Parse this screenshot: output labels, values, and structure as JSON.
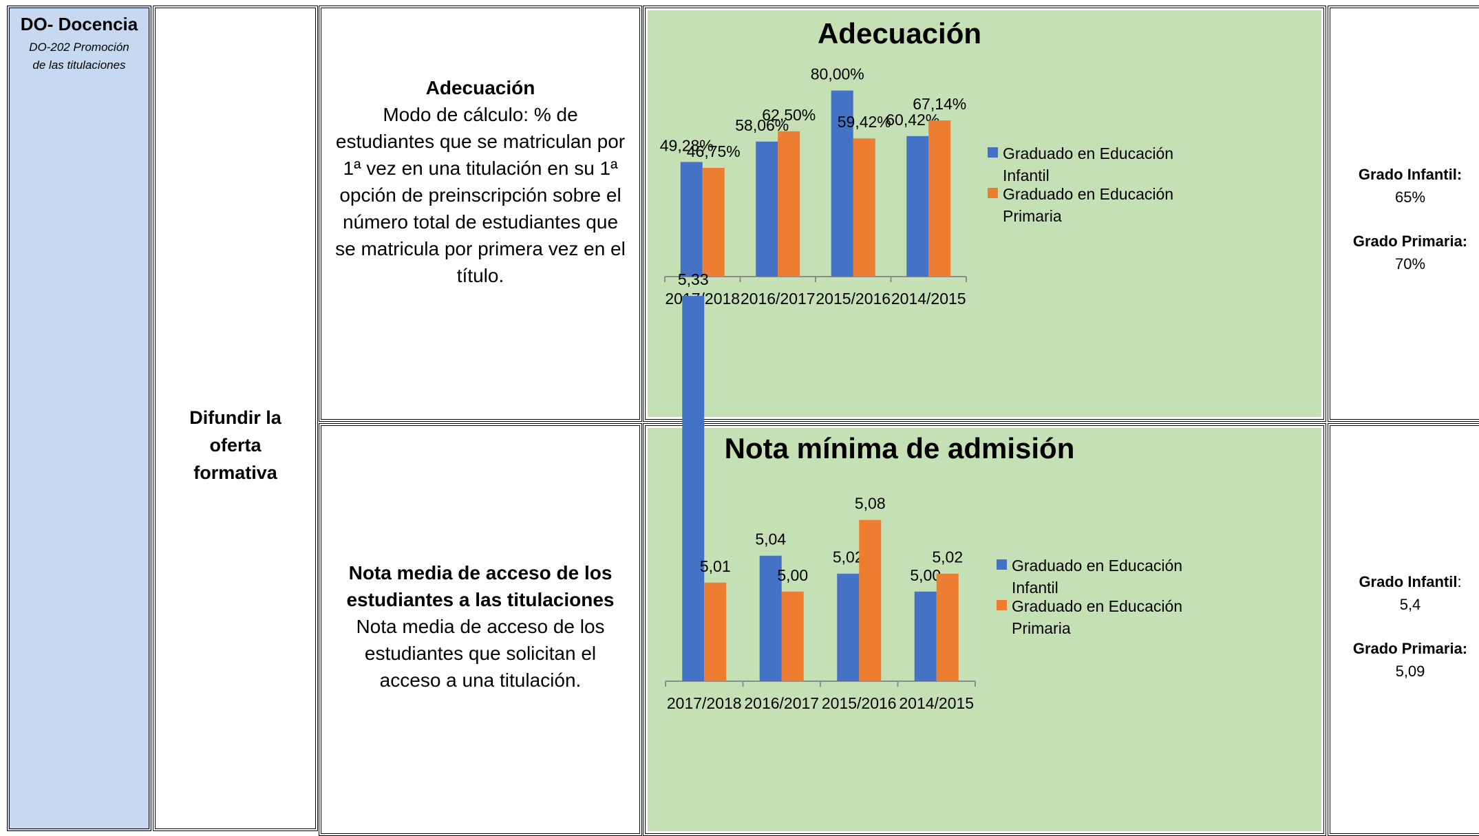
{
  "area": {
    "code": "DO- Docencia",
    "sub_line1": "DO-202 Promoción",
    "sub_line2": "de las titulaciones"
  },
  "objective": {
    "line1": "Difundir la",
    "line2": "oferta",
    "line3": "formativa"
  },
  "indicator1": {
    "title": "Adecuación",
    "text": "Modo de cálculo: % de estudiantes que se matriculan por 1ª vez en una titulación en su 1ª opción de preinscripción sobre el número total de estudiantes que se matricula por primera vez en el título."
  },
  "indicator2": {
    "title": "Nota media de acceso de los estudiantes a las titulaciones",
    "text": "Nota media de acceso de los estudiantes que solicitan el acceso a una titulación."
  },
  "targets1": {
    "label1": "Grado Infantil:",
    "value1": "65%",
    "label2": "Grado Primaria:",
    "value2": "70%"
  },
  "targets2": {
    "label1": "Grado Infantil",
    "colon1": ":",
    "value1": "5,4",
    "label2": "Grado Primaria:",
    "value2": "5,09"
  },
  "colors": {
    "infantil": "#4472c4",
    "primaria": "#ed7d31",
    "chart_bg": "#c4e0b4",
    "area_bg": "#c6d9f0"
  },
  "chart_data": [
    {
      "type": "bar",
      "title": "Adecuación",
      "categories": [
        "2017/2018",
        "2016/2017",
        "2015/2016",
        "2014/2015"
      ],
      "series": [
        {
          "name": "Graduado en Educación Infantil",
          "values": [
            49.28,
            58.06,
            80.0,
            60.42
          ],
          "labels": [
            "49,28%",
            "58,06%",
            "80,00%",
            "60,42%"
          ]
        },
        {
          "name": "Graduado en Educación Primaria",
          "values": [
            46.75,
            62.5,
            59.42,
            67.14
          ],
          "labels": [
            "46,75%",
            "62,50%",
            "59,42%",
            "67,14%"
          ]
        }
      ],
      "ylim": [
        0,
        100
      ],
      "grid": false,
      "legend": "right"
    },
    {
      "type": "bar",
      "title": "Nota mínima de admisión",
      "categories": [
        "2017/2018",
        "2016/2017",
        "2015/2016",
        "2014/2015"
      ],
      "series": [
        {
          "name": "Graduado en Educación Infantil",
          "values": [
            5.33,
            5.04,
            5.02,
            5.0
          ],
          "labels": [
            "5,33",
            "5,04",
            "5,02",
            "5,00"
          ]
        },
        {
          "name": "Graduado en Educación Primaria",
          "values": [
            5.01,
            5.0,
            5.08,
            5.02
          ],
          "labels": [
            "5,01",
            "5,00",
            "5,08",
            "5,02"
          ]
        }
      ],
      "ylim": [
        4.9,
        5.35
      ],
      "grid": false,
      "legend": "right"
    }
  ]
}
